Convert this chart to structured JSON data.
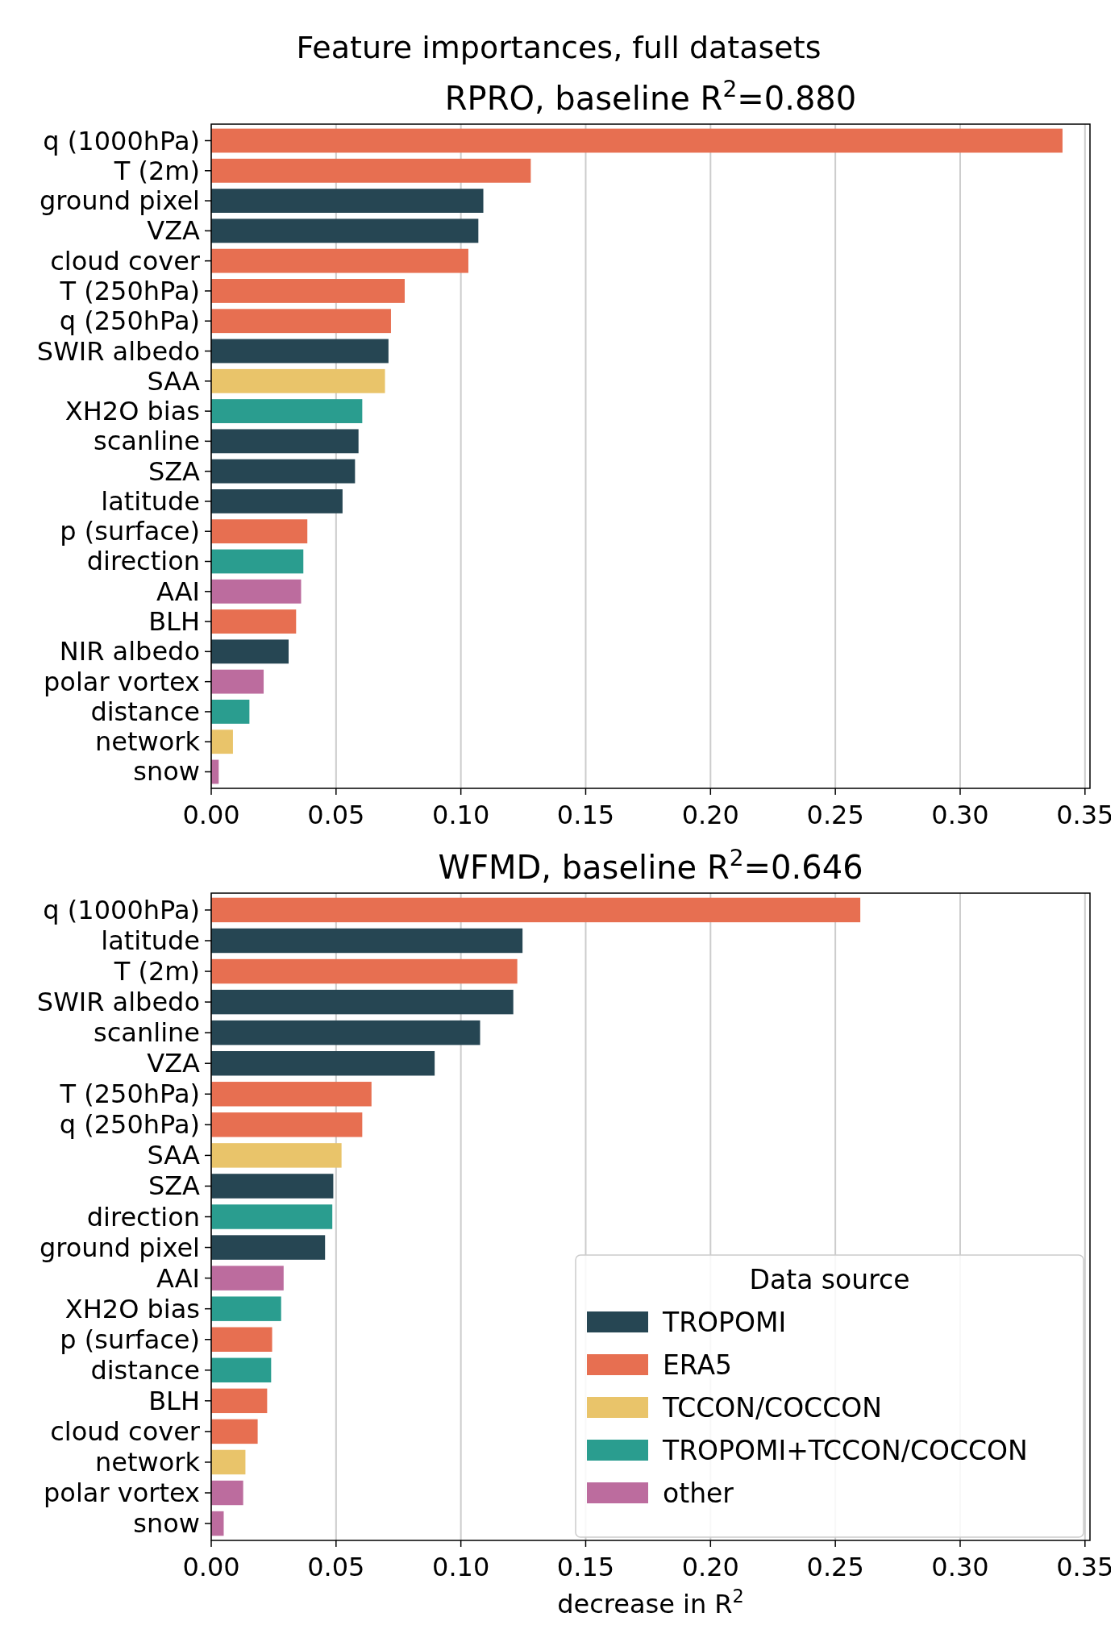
{
  "chart_data": [
    {
      "type": "bar",
      "orientation": "horizontal",
      "title": "Feature importances, full datasets",
      "subtitle": "RPRO, baseline R$^{2}$=0.880",
      "categories": [
        "q (1000hPa)",
        "T (2m)",
        "ground pixel",
        "VZA",
        "cloud cover",
        "T (250hPa)",
        "q (250hPa)",
        "SWIR albedo",
        "SAA",
        "XH2O bias",
        "scanline",
        "SZA",
        "latitude",
        "p (surface)",
        "direction",
        "AAI",
        "BLH",
        "NIR albedo",
        "polar vortex",
        "distance",
        "network",
        "snow"
      ],
      "series": [
        {
          "color": "#264653",
          "values": [
            null,
            null,
            0.109,
            0.107,
            null,
            null,
            null,
            0.071,
            null,
            null,
            0.059,
            0.0576,
            0.0526,
            null,
            null,
            null,
            null,
            0.031,
            null,
            null,
            null,
            null
          ]
        },
        {
          "color": "#e76f51",
          "values": [
            0.341,
            0.128,
            null,
            null,
            0.103,
            0.0775,
            0.072,
            null,
            null,
            null,
            null,
            null,
            null,
            0.0385,
            null,
            null,
            0.034,
            null,
            null,
            null,
            null,
            null
          ]
        },
        {
          "color": "#e9c46a",
          "values": [
            null,
            null,
            null,
            null,
            null,
            null,
            null,
            null,
            0.0696,
            null,
            null,
            null,
            null,
            null,
            null,
            null,
            null,
            null,
            null,
            null,
            0.0087,
            null
          ]
        },
        {
          "color": "#2a9d8f",
          "values": [
            null,
            null,
            null,
            null,
            null,
            null,
            null,
            null,
            null,
            0.0605,
            null,
            null,
            null,
            null,
            0.0369,
            null,
            null,
            null,
            null,
            0.0153,
            null,
            null
          ]
        },
        {
          "color": "#bc6c9e",
          "values": [
            null,
            null,
            null,
            null,
            null,
            null,
            null,
            null,
            null,
            null,
            null,
            null,
            null,
            null,
            null,
            0.036,
            null,
            null,
            0.021,
            null,
            null,
            0.003
          ]
        }
      ],
      "xlim": [
        0,
        0.352
      ],
      "xticks": [
        {
          "value": 0,
          "label": "0.00"
        },
        0.05,
        {
          "value": 0.1,
          "label": "0.10"
        },
        0.15,
        {
          "value": 0.2,
          "label": "0.20"
        },
        0.25,
        {
          "value": 0.3,
          "label": "0.30"
        },
        0.35
      ],
      "grid": "x",
      "legend": false
    },
    {
      "type": "bar",
      "orientation": "horizontal",
      "title": "WFMD, baseline R$^{2}$=0.646",
      "xlabel": "decrease in R$^{2}$",
      "legend_title": "Data source",
      "categories": [
        "q (1000hPa)",
        "latitude",
        "T (2m)",
        "SWIR albedo",
        "scanline",
        "VZA",
        "T (250hPa)",
        "q (250hPa)",
        "SAA",
        "SZA",
        "direction",
        "ground pixel",
        "AAI",
        "XH2O bias",
        "p (surface)",
        "distance",
        "BLH",
        "cloud cover",
        "network",
        "polar vortex",
        "snow"
      ],
      "series": [
        {
          "name": "TROPOMI",
          "color": "#264653",
          "values": [
            null,
            0.1247,
            null,
            0.121,
            0.1077,
            0.0895,
            null,
            null,
            null,
            0.0489,
            null,
            0.0456,
            null,
            null,
            null,
            null,
            null,
            null,
            null,
            null,
            null
          ]
        },
        {
          "name": "ERA5",
          "color": "#e76f51",
          "values": [
            0.26,
            null,
            0.1226,
            null,
            null,
            null,
            0.0642,
            0.0605,
            null,
            null,
            null,
            null,
            null,
            null,
            0.0244,
            null,
            0.0224,
            0.0186,
            null,
            null,
            null
          ]
        },
        {
          "name": "TCCON/COCCON",
          "color": "#e9c46a",
          "values": [
            null,
            null,
            null,
            null,
            null,
            null,
            null,
            null,
            0.0522,
            null,
            null,
            null,
            null,
            null,
            null,
            null,
            null,
            null,
            0.0137,
            null,
            null
          ]
        },
        {
          "name": "TROPOMI+TCCON/COCCON",
          "color": "#2a9d8f",
          "values": [
            null,
            null,
            null,
            null,
            null,
            null,
            null,
            null,
            null,
            null,
            0.0485,
            null,
            null,
            0.028,
            null,
            0.024,
            null,
            null,
            null,
            null,
            null
          ]
        },
        {
          "name": "other",
          "color": "#bc6c9e",
          "values": [
            null,
            null,
            null,
            null,
            null,
            null,
            null,
            null,
            null,
            null,
            null,
            null,
            0.029,
            null,
            null,
            null,
            null,
            null,
            null,
            0.0128,
            0.005
          ]
        }
      ],
      "xlim": [
        0,
        0.352
      ],
      "xticks": [
        {
          "value": 0,
          "label": "0.00"
        },
        0.05,
        {
          "value": 0.1,
          "label": "0.10"
        },
        0.15,
        {
          "value": 0.2,
          "label": "0.20"
        },
        0.25,
        {
          "value": 0.3,
          "label": "0.30"
        },
        0.35
      ],
      "grid": "x",
      "legend": "bottom right"
    }
  ]
}
